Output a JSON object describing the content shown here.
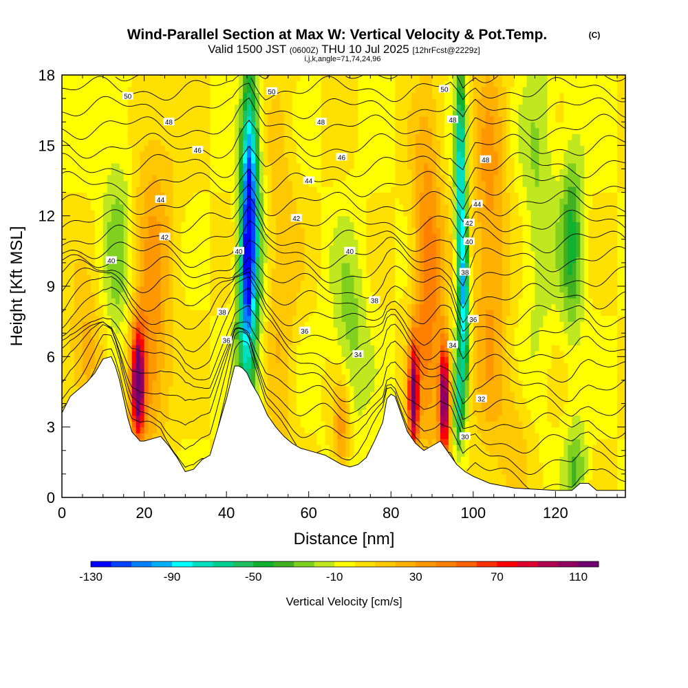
{
  "chart_data": {
    "type": "heatmap",
    "title": "Wind-Parallel Section at Max W: Vertical Velocity & Pot.Temp.",
    "title_unit": "(C)",
    "subtitle_valid": "Valid 1500 JST",
    "subtitle_utc": "(0600Z)",
    "subtitle_date": "THU 10 Jul 2025",
    "subtitle_fcst": "[12hrFcst@2229z]",
    "subtitle_indices": "i,j,k,angle=71,74,24,96",
    "xlabel": "Distance [nm]",
    "ylabel": "Height [Kft MSL]",
    "xlim": [
      0,
      137
    ],
    "ylim": [
      0,
      18
    ],
    "x_ticks": [
      0,
      20,
      40,
      60,
      80,
      100,
      120
    ],
    "x_tick_labels": [
      "0",
      "20",
      "40",
      "60",
      "80",
      "100",
      "120"
    ],
    "y_ticks": [
      0,
      3,
      6,
      9,
      12,
      15,
      18
    ],
    "y_tick_labels": [
      "0",
      "3",
      "6",
      "9",
      "12",
      "15",
      "18"
    ],
    "colorbar": {
      "label": "Vertical Velocity [cm/s]",
      "min": -130,
      "max": 120,
      "step": 10,
      "tick_values": [
        -130,
        -90,
        -50,
        -10,
        30,
        70,
        110
      ],
      "tick_labels": [
        "-130",
        "-90",
        "-50",
        "-10",
        "30",
        "70",
        "110"
      ],
      "colors": [
        "#0000ff",
        "#0040ff",
        "#0080ff",
        "#00b0ff",
        "#00ffff",
        "#00e0c0",
        "#00d090",
        "#20c060",
        "#10b030",
        "#40b020",
        "#80d020",
        "#c0e820",
        "#ffff00",
        "#ffe000",
        "#ffc800",
        "#ffb000",
        "#ff9800",
        "#ff8000",
        "#ff6000",
        "#ff3000",
        "#ff0000",
        "#e00030",
        "#b00050",
        "#900060",
        "#700070"
      ]
    },
    "terrain": [
      [
        0,
        3.6
      ],
      [
        2,
        4.3
      ],
      [
        4,
        4.6
      ],
      [
        6,
        4.9
      ],
      [
        8,
        5.3
      ],
      [
        10,
        5.9
      ],
      [
        12,
        6.0
      ],
      [
        13,
        5.6
      ],
      [
        14,
        5.0
      ],
      [
        15,
        4.2
      ],
      [
        16,
        3.4
      ],
      [
        17,
        2.8
      ],
      [
        18,
        2.6
      ],
      [
        19,
        2.4
      ],
      [
        20,
        2.4
      ],
      [
        22,
        2.5
      ],
      [
        24,
        2.6
      ],
      [
        26,
        2.2
      ],
      [
        28,
        1.7
      ],
      [
        30,
        1.1
      ],
      [
        32,
        1.2
      ],
      [
        34,
        1.6
      ],
      [
        36,
        1.8
      ],
      [
        38,
        3.0
      ],
      [
        40,
        4.2
      ],
      [
        42,
        5.6
      ],
      [
        43,
        5.6
      ],
      [
        44,
        5.5
      ],
      [
        45,
        5.3
      ],
      [
        46,
        4.9
      ],
      [
        48,
        4.3
      ],
      [
        50,
        3.5
      ],
      [
        52,
        3.0
      ],
      [
        54,
        2.6
      ],
      [
        56,
        2.3
      ],
      [
        58,
        2.1
      ],
      [
        60,
        2.0
      ],
      [
        62,
        1.9
      ],
      [
        64,
        1.8
      ],
      [
        66,
        1.6
      ],
      [
        68,
        1.4
      ],
      [
        70,
        1.3
      ],
      [
        72,
        1.4
      ],
      [
        74,
        1.7
      ],
      [
        76,
        2.4
      ],
      [
        78,
        3.2
      ],
      [
        79,
        4.2
      ],
      [
        80,
        4.4
      ],
      [
        81,
        4.3
      ],
      [
        82,
        3.8
      ],
      [
        84,
        2.8
      ],
      [
        86,
        2.3
      ],
      [
        88,
        2.0
      ],
      [
        90,
        2.2
      ],
      [
        92,
        2.4
      ],
      [
        94,
        1.9
      ],
      [
        96,
        1.4
      ],
      [
        98,
        1.1
      ],
      [
        100,
        0.9
      ],
      [
        104,
        0.6
      ],
      [
        110,
        0.4
      ],
      [
        120,
        0.3
      ],
      [
        124,
        0.3
      ],
      [
        126,
        0.6
      ],
      [
        128,
        0.6
      ],
      [
        130,
        0.3
      ],
      [
        134,
        0.3
      ],
      [
        137,
        0.3
      ]
    ],
    "w_features": [
      {
        "x": 18.5,
        "z": 4.8,
        "sx": 1.0,
        "sz": 1.5,
        "w": 120
      },
      {
        "x": 20.5,
        "z": 5.5,
        "sx": 3.5,
        "sz": 2.5,
        "w": 40
      },
      {
        "x": 14,
        "z": 10,
        "sx": 3,
        "sz": 5,
        "w": -25
      },
      {
        "x": 22,
        "z": 12,
        "sx": 4,
        "sz": 4,
        "w": 25
      },
      {
        "x": 45.5,
        "z": 12.5,
        "sx": 1.3,
        "sz": 3.5,
        "w": -110
      },
      {
        "x": 44.5,
        "z": 8,
        "sx": 1.5,
        "sz": 3,
        "w": -60
      },
      {
        "x": 47,
        "z": 10,
        "sx": 2,
        "sz": 6,
        "w": -25
      },
      {
        "x": 53,
        "z": 9,
        "sx": 3,
        "sz": 6,
        "w": 20
      },
      {
        "x": 70,
        "z": 7,
        "sx": 3,
        "sz": 3,
        "w": -25
      },
      {
        "x": 68,
        "z": 3,
        "sx": 1.5,
        "sz": 1.5,
        "w": 40
      },
      {
        "x": 85.5,
        "z": 4.2,
        "sx": 0.8,
        "sz": 1.6,
        "w": 110
      },
      {
        "x": 89,
        "z": 9,
        "sx": 2.5,
        "sz": 5,
        "w": 50
      },
      {
        "x": 93,
        "z": 4.2,
        "sx": 0.9,
        "sz": 1.7,
        "w": 120
      },
      {
        "x": 97,
        "z": 13,
        "sx": 0.9,
        "sz": 4,
        "w": -85
      },
      {
        "x": 98,
        "z": 8,
        "sx": 0.8,
        "sz": 2.5,
        "w": -70
      },
      {
        "x": 96.5,
        "z": 4,
        "sx": 0.8,
        "sz": 1.5,
        "w": -55
      },
      {
        "x": 104,
        "z": 11,
        "sx": 3,
        "sz": 6,
        "w": 35
      },
      {
        "x": 116,
        "z": 13,
        "sx": 3,
        "sz": 5,
        "w": -20
      },
      {
        "x": 124,
        "z": 11,
        "sx": 2,
        "sz": 3,
        "w": -40
      },
      {
        "x": 125,
        "z": 1.2,
        "sx": 2,
        "sz": 1.5,
        "w": -30
      },
      {
        "x": 110,
        "z": 3,
        "sx": 3,
        "sz": 2,
        "w": 15
      },
      {
        "x": 6,
        "z": 6,
        "sx": 3,
        "sz": 2,
        "w": 30
      }
    ],
    "theta_levels": [
      30,
      32,
      34,
      36,
      38,
      40,
      42,
      44,
      46,
      48,
      50
    ],
    "theta_labels": [
      {
        "text": "50",
        "x": 16,
        "z": 17.1
      },
      {
        "text": "48",
        "x": 26,
        "z": 16.0
      },
      {
        "text": "46",
        "x": 33,
        "z": 14.8
      },
      {
        "text": "44",
        "x": 24,
        "z": 12.7
      },
      {
        "text": "42",
        "x": 25,
        "z": 11.1
      },
      {
        "text": "40",
        "x": 12,
        "z": 10.1
      },
      {
        "text": "50",
        "x": 51,
        "z": 17.3
      },
      {
        "text": "48",
        "x": 63,
        "z": 16.0
      },
      {
        "text": "46",
        "x": 68,
        "z": 14.5
      },
      {
        "text": "44",
        "x": 60,
        "z": 13.5
      },
      {
        "text": "42",
        "x": 57,
        "z": 11.9
      },
      {
        "text": "40",
        "x": 43,
        "z": 10.5
      },
      {
        "text": "40",
        "x": 70,
        "z": 10.5
      },
      {
        "text": "38",
        "x": 39,
        "z": 7.9
      },
      {
        "text": "38",
        "x": 76,
        "z": 8.4
      },
      {
        "text": "36",
        "x": 40,
        "z": 6.7
      },
      {
        "text": "36",
        "x": 59,
        "z": 7.1
      },
      {
        "text": "34",
        "x": 72,
        "z": 6.1
      },
      {
        "text": "34",
        "x": 95,
        "z": 6.5
      },
      {
        "text": "50",
        "x": 93,
        "z": 17.4
      },
      {
        "text": "48",
        "x": 95,
        "z": 16.1
      },
      {
        "text": "48",
        "x": 103,
        "z": 14.4
      },
      {
        "text": "44",
        "x": 101,
        "z": 12.5
      },
      {
        "text": "42",
        "x": 99,
        "z": 11.7
      },
      {
        "text": "40",
        "x": 99,
        "z": 10.9
      },
      {
        "text": "38",
        "x": 98,
        "z": 9.6
      },
      {
        "text": "36",
        "x": 100,
        "z": 7.6
      },
      {
        "text": "32",
        "x": 102,
        "z": 4.2
      },
      {
        "text": "30",
        "x": 98,
        "z": 2.6
      }
    ]
  }
}
